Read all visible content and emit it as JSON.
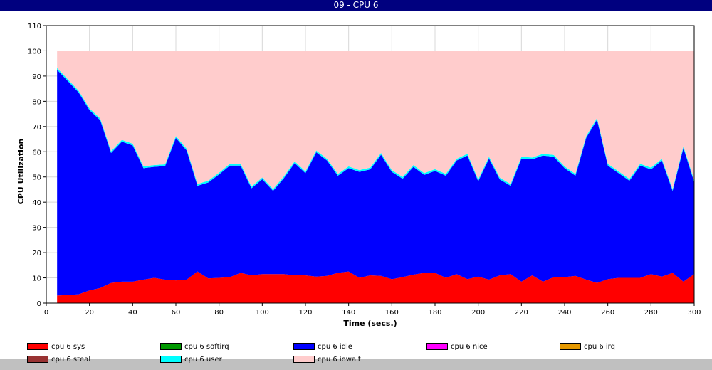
{
  "window": {
    "title": "09 - CPU 6"
  },
  "chart_data": {
    "type": "area",
    "stacked": true,
    "title": "09 - CPU 6",
    "xlabel": "Time (secs.)",
    "ylabel": "CPU Utilization",
    "xlim": [
      0,
      300
    ],
    "ylim": [
      0,
      110
    ],
    "x_ticks": [
      0,
      20,
      40,
      60,
      80,
      100,
      120,
      140,
      160,
      180,
      200,
      220,
      240,
      260,
      280,
      300
    ],
    "y_ticks": [
      0,
      10,
      20,
      30,
      40,
      50,
      60,
      70,
      80,
      90,
      100,
      110
    ],
    "grid": true,
    "legend_position": "bottom",
    "x": [
      5,
      10,
      15,
      20,
      25,
      30,
      35,
      40,
      45,
      50,
      55,
      60,
      65,
      70,
      75,
      80,
      85,
      90,
      95,
      100,
      105,
      110,
      115,
      120,
      125,
      130,
      135,
      140,
      145,
      150,
      155,
      160,
      165,
      170,
      175,
      180,
      185,
      190,
      195,
      200,
      205,
      210,
      215,
      220,
      225,
      230,
      235,
      240,
      245,
      250,
      255,
      260,
      265,
      270,
      275,
      280,
      285,
      290,
      295,
      300
    ],
    "series": [
      {
        "name": "cpu 6 sys",
        "color": "#ff0000",
        "values": [
          3,
          3.2,
          3.5,
          5,
          6,
          8,
          8.5,
          8.5,
          9.3,
          10,
          9.3,
          9,
          9.3,
          12.5,
          9.8,
          10,
          10.3,
          12,
          11,
          11.5,
          11.5,
          11.5,
          11,
          11,
          10.5,
          10.8,
          12,
          12.5,
          10,
          11,
          10.8,
          9.5,
          10.3,
          11.3,
          12,
          12,
          10,
          11.5,
          9.5,
          10.5,
          9.3,
          11,
          11.5,
          8.5,
          11,
          8.5,
          10.3,
          10.3,
          10.8,
          9.3,
          8,
          9.5,
          10,
          10,
          10,
          11.5,
          10.5,
          12,
          8.5,
          11.5
        ]
      },
      {
        "name": "cpu 6 softirq",
        "color": "#009900",
        "values": [
          0,
          0,
          0,
          0,
          0,
          0,
          0,
          0,
          0,
          0,
          0,
          0,
          0,
          0,
          0,
          0,
          0,
          0,
          0,
          0,
          0,
          0,
          0,
          0,
          0,
          0,
          0,
          0,
          0,
          0,
          0,
          0,
          0,
          0,
          0,
          0,
          0,
          0,
          0,
          0,
          0,
          0,
          0,
          0,
          0,
          0,
          0,
          0,
          0,
          0,
          0,
          0,
          0,
          0,
          0,
          0,
          0,
          0,
          0,
          0
        ]
      },
      {
        "name": "cpu 6 idle",
        "color": "#0000ff",
        "values": [
          89.5,
          84.8,
          80,
          71.5,
          66.5,
          51.5,
          55.5,
          54,
          44.2,
          44,
          45,
          56.5,
          51.2,
          34,
          38,
          41,
          44.2,
          42.5,
          34.5,
          37.6,
          33,
          38,
          44.5,
          40.5,
          49.3,
          45.7,
          38.5,
          41,
          42,
          42,
          48,
          42.5,
          39,
          42.7,
          38.8,
          40.4,
          40.5,
          45,
          49,
          37.8,
          48,
          38,
          35,
          48.8,
          46,
          50,
          47.7,
          43.2,
          39.7,
          56.2,
          64.7,
          45,
          41.5,
          38.5,
          44.5,
          41.5,
          46,
          32.5,
          53,
          36.5
        ]
      },
      {
        "name": "cpu 6 nice",
        "color": "#ff00ff",
        "values": [
          0,
          0,
          0,
          0,
          0,
          0,
          0,
          0,
          0,
          0,
          0,
          0,
          0,
          0,
          0,
          0,
          0,
          0,
          0,
          0,
          0,
          0,
          0,
          0,
          0,
          0,
          0,
          0,
          0,
          0,
          0,
          0,
          0,
          0,
          0,
          0,
          0,
          0,
          0,
          0,
          0,
          0,
          0,
          0,
          0,
          0,
          0,
          0,
          0,
          0,
          0,
          0,
          0,
          0,
          0,
          0,
          0,
          0,
          0,
          0
        ]
      },
      {
        "name": "cpu 6 irq",
        "color": "#e69900",
        "values": [
          0,
          0,
          0,
          0,
          0,
          0,
          0,
          0,
          0,
          0,
          0,
          0,
          0,
          0,
          0,
          0,
          0,
          0,
          0,
          0,
          0,
          0,
          0,
          0,
          0,
          0,
          0,
          0,
          0,
          0,
          0,
          0,
          0,
          0,
          0,
          0,
          0,
          0,
          0,
          0,
          0,
          0,
          0,
          0,
          0,
          0,
          0,
          0,
          0,
          0,
          0,
          0,
          0,
          0,
          0,
          0,
          0,
          0,
          0,
          0
        ]
      },
      {
        "name": "cpu 6 steal",
        "color": "#993333",
        "values": [
          0,
          0,
          0,
          0,
          0,
          0,
          0,
          0,
          0,
          0,
          0,
          0,
          0,
          0,
          0,
          0,
          0,
          0,
          0,
          0,
          0,
          0,
          0,
          0,
          0,
          0,
          0,
          0,
          0,
          0,
          0,
          0,
          0,
          0,
          0,
          0,
          0,
          0,
          0,
          0,
          0,
          0,
          0,
          0,
          0,
          0,
          0,
          0,
          0,
          0,
          0,
          0,
          0,
          0,
          0,
          0,
          0,
          0,
          0,
          0
        ]
      },
      {
        "name": "cpu 6 user",
        "color": "#00ffff",
        "values": [
          0.7,
          0.7,
          0.7,
          0.7,
          0.7,
          0.7,
          0.7,
          0.7,
          0.7,
          0.7,
          0.7,
          0.7,
          0.7,
          0.7,
          0.7,
          0.7,
          0.7,
          0.7,
          0.7,
          0.7,
          0.7,
          0.7,
          0.7,
          0.7,
          0.7,
          0.7,
          0.7,
          0.7,
          0.7,
          0.7,
          0.7,
          0.7,
          0.7,
          0.7,
          0.7,
          0.7,
          0.7,
          0.7,
          0.7,
          0.7,
          0.7,
          0.7,
          0.7,
          0.7,
          0.7,
          0.7,
          0.7,
          0.7,
          0.7,
          0.7,
          0.7,
          0.7,
          0.7,
          0.7,
          0.7,
          0.7,
          0.7,
          0.7,
          0.7,
          0.7
        ]
      },
      {
        "name": "cpu 6 iowait",
        "color": "#ffcccc",
        "values": [
          6.8,
          11.3,
          15.8,
          22.8,
          26.8,
          39.8,
          35.3,
          36.8,
          45.8,
          45.3,
          45,
          33.8,
          38.8,
          52.8,
          51.5,
          48.3,
          44.8,
          44.8,
          53.8,
          50.2,
          54.8,
          49.8,
          43.8,
          47.8,
          39.5,
          42.8,
          48.8,
          45.8,
          47.3,
          46.3,
          40.5,
          47.3,
          50,
          45.3,
          48.5,
          46.9,
          48.8,
          42.8,
          40.8,
          51,
          42,
          50.3,
          52.8,
          42,
          42.3,
          40.8,
          41.3,
          45.8,
          48.8,
          33.8,
          26.6,
          44.8,
          47.8,
          50.8,
          44.8,
          46.3,
          42.8,
          54.8,
          37.8,
          51.3
        ]
      }
    ]
  }
}
